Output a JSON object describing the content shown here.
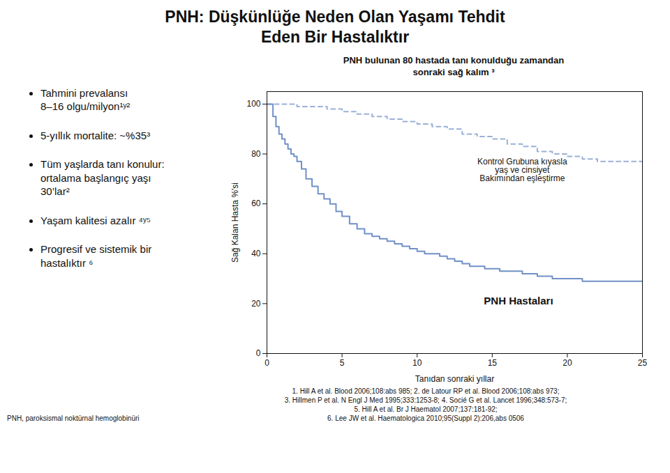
{
  "chart_data": {
    "type": "step",
    "title": "PNH: Düşkünlüğe Neden Olan Yaşamı Tehdit\nEden Bir Hastalıktır",
    "subtitle": "PNH bulunan 80 hastada tanı konulduğu zamandan\nsonraki sağ kalım ³",
    "xlabel": "Tanıdan sonraki yıllar",
    "ylabel": "Sağ Kalan Hasta %'si",
    "xlim": [
      0,
      25
    ],
    "ylim": [
      0,
      105
    ],
    "xticks": [
      0,
      5,
      10,
      15,
      20,
      25
    ],
    "yticks": [
      0,
      20,
      40,
      60,
      80,
      100
    ],
    "grid": false,
    "bullet_points": [
      "Tahmini prevalansı\n8–16 olgu/milyon¹ʸ²",
      "5-yıllık mortalite: ~%35³",
      "Tüm yaşlarda tanı konulur:\nortalama başlangıç yaşı\n30’lar²",
      "Yaşam kalitesi azalır ⁴ʸ⁵",
      "Progresif ve sistemik bir\nhastalıktır ⁶"
    ],
    "footnotes": [
      "PNH, paroksismal noktürnal hemoglobinüri",
      "1. Hill A et al. Blood 2006;108:abs 985; 2. de Latour RP et al. Blood 2006;108:abs 973;\n3. Hillmen P et al. N Engl J Med 1995;333:1253-8; 4. Socié G et al. Lancet 1996;348:573-7;\n5. Hill A et al. Br J Haematol 2007;137:181-92;\n6. Lee JW et al. Haematologica 2010;95(Suppl 2):206,abs 0506"
    ],
    "series": [
      {
        "name": "Kontrol Grubuna kıyasla\nyaş ve cinsiyet\nBakımından eşleştirme",
        "color": "#9ab0d8",
        "line_style": "dashed",
        "x": [
          0,
          1,
          2,
          3,
          4,
          5,
          6,
          7,
          8,
          9,
          10,
          11,
          12,
          13,
          14,
          15,
          16,
          17,
          18,
          19,
          20,
          21,
          22,
          23,
          24,
          25
        ],
        "values": [
          100,
          100,
          99,
          99,
          98,
          97,
          96,
          95,
          94,
          93,
          92,
          91,
          90,
          88,
          87,
          86,
          84,
          83,
          81,
          80,
          79,
          78,
          77,
          77,
          77,
          77
        ]
      },
      {
        "name": "PNH Hastaları",
        "color": "#7090c8",
        "line_style": "solid",
        "x": [
          0,
          0.2,
          0.4,
          0.6,
          0.8,
          1.0,
          1.2,
          1.4,
          1.6,
          1.8,
          2.0,
          2.3,
          2.6,
          3.0,
          3.4,
          3.8,
          4.2,
          4.6,
          5.0,
          5.5,
          6.0,
          6.5,
          7.0,
          7.5,
          8.0,
          8.5,
          9.0,
          9.5,
          10.0,
          10.5,
          11.0,
          11.5,
          12.0,
          12.5,
          13.0,
          13.5,
          14.0,
          14.5,
          15.0,
          15.5,
          16.0,
          17.0,
          18.0,
          19.0,
          20.0,
          21.0,
          22.0,
          23.0,
          24.0,
          25.0
        ],
        "values": [
          100,
          100,
          95,
          91,
          88,
          86,
          84,
          82,
          80,
          79,
          77,
          74,
          70,
          67,
          64,
          62,
          60,
          57,
          55,
          52,
          50,
          48,
          47,
          46,
          45,
          44,
          43,
          42,
          41,
          40,
          40,
          39,
          38,
          37,
          36,
          35,
          35,
          34,
          34,
          33,
          33,
          32,
          31,
          30,
          30,
          29,
          29,
          29,
          29,
          29
        ]
      }
    ]
  }
}
